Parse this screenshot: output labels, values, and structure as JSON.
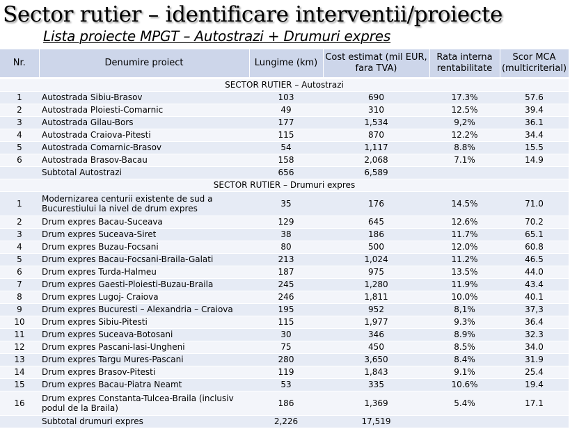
{
  "title": "Sector rutier – identificare interventii/proiecte",
  "subtitle": "Lista proiecte MPGT – Autostrazi + Drumuri expres",
  "headers": {
    "nr": "Nr.",
    "name": "Denumire proiect",
    "length": "Lungime (km)",
    "cost": "Cost estimat (mil EUR, fara TVA)",
    "irr": "Rata interna rentabilitate",
    "mca": "Scor MCA (multicriterial)"
  },
  "sections": [
    {
      "heading": "SECTOR RUTIER – Autostrazi",
      "rows": [
        {
          "nr": "1",
          "name": "Autostrada Sibiu-Brasov",
          "length": "103",
          "cost": "690",
          "irr": "17.3%",
          "mca": "57.6"
        },
        {
          "nr": "2",
          "name": "Autostrada Ploiesti-Comarnic",
          "length": "49",
          "cost": "310",
          "irr": "12.5%",
          "mca": "39.4"
        },
        {
          "nr": "3",
          "name": "Autostrada Gilau-Bors",
          "length": "177",
          "cost": "1,534",
          "irr": "9,2%",
          "mca": "36.1"
        },
        {
          "nr": "4",
          "name": "Autostrada Craiova-Pitesti",
          "length": "115",
          "cost": "870",
          "irr": "12.2%",
          "mca": "34.4"
        },
        {
          "nr": "5",
          "name": "Autostrada Comarnic-Brasov",
          "length": "54",
          "cost": "1,117",
          "irr": "8.8%",
          "mca": "15.5"
        },
        {
          "nr": "6",
          "name": "Autostrada Brasov-Bacau",
          "length": "158",
          "cost": "2,068",
          "irr": "7.1%",
          "mca": "14.9"
        }
      ],
      "subtotal": {
        "label": "Subtotal Autostrazi",
        "length": "656",
        "cost": "6,589"
      }
    },
    {
      "heading": "SECTOR RUTIER – Drumuri expres",
      "rows": [
        {
          "nr": "1",
          "name": "Modernizarea centurii existente de sud a Bucurestiului la nivel de drum expres",
          "length": "35",
          "cost": "176",
          "irr": "14.5%",
          "mca": "71.0"
        },
        {
          "nr": "2",
          "name": "Drum expres Bacau-Suceava",
          "length": "129",
          "cost": "645",
          "irr": "12.6%",
          "mca": "70.2"
        },
        {
          "nr": "3",
          "name": "Drum expres Suceava-Siret",
          "length": "38",
          "cost": "186",
          "irr": "11.7%",
          "mca": "65.1"
        },
        {
          "nr": "4",
          "name": "Drum expres Buzau-Focsani",
          "length": "80",
          "cost": "500",
          "irr": "12.0%",
          "mca": "60.8"
        },
        {
          "nr": "5",
          "name": "Drum expres Bacau-Focsani-Braila-Galati",
          "length": "213",
          "cost": "1,024",
          "irr": "11.2%",
          "mca": "46.5"
        },
        {
          "nr": "6",
          "name": "Drum expres Turda-Halmeu",
          "length": "187",
          "cost": "975",
          "irr": "13.5%",
          "mca": "44.0"
        },
        {
          "nr": "7",
          "name": "Drum expres Gaesti-Ploiesti-Buzau-Braila",
          "length": "245",
          "cost": "1,280",
          "irr": "11.9%",
          "mca": "43.4"
        },
        {
          "nr": "8",
          "name": "Drum expres Lugoj- Craiova",
          "length": "246",
          "cost": "1,811",
          "irr": "10.0%",
          "mca": "40.1"
        },
        {
          "nr": "9",
          "name": "Drum expres Bucuresti – Alexandria – Craiova",
          "length": "195",
          "cost": "952",
          "irr": "8,1%",
          "mca": "37,3"
        },
        {
          "nr": "10",
          "name": "Drum expres Sibiu-Pitesti",
          "length": "115",
          "cost": "1,977",
          "irr": "9.3%",
          "mca": "36.4"
        },
        {
          "nr": "11",
          "name": "Drum expres Suceava-Botosani",
          "length": "30",
          "cost": "346",
          "irr": "8.9%",
          "mca": "32.3"
        },
        {
          "nr": "12",
          "name": "Drum expres Pascani-Iasi-Ungheni",
          "length": "75",
          "cost": "450",
          "irr": "8.5%",
          "mca": "34.0"
        },
        {
          "nr": "13",
          "name": "Drum expres Targu Mures-Pascani",
          "length": "280",
          "cost": "3,650",
          "irr": "8.4%",
          "mca": "31.9"
        },
        {
          "nr": "14",
          "name": "Drum expres Brasov-Pitesti",
          "length": "119",
          "cost": "1,843",
          "irr": "9.1%",
          "mca": "25.4"
        },
        {
          "nr": "15",
          "name": "Drum expres Bacau-Piatra Neamt",
          "length": "53",
          "cost": "335",
          "irr": "10.6%",
          "mca": "19.4"
        },
        {
          "nr": "16",
          "name": "Drum expres Constanta-Tulcea-Braila (inclusiv podul de la Braila)",
          "length": "186",
          "cost": "1,369",
          "irr": "5.4%",
          "mca": "17.1"
        }
      ],
      "subtotal": {
        "label": "Subtotal drumuri expres",
        "length": "2,226",
        "cost": "17,519"
      }
    }
  ]
}
